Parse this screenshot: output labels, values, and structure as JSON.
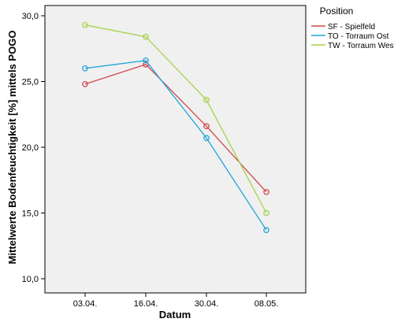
{
  "chart_data": {
    "type": "line",
    "categories": [
      "03.04.",
      "16.04.",
      "30.04.",
      "08.05."
    ],
    "xlabel": "Datum",
    "ylabel": "Mittelwerte Bodenfeuchtigkeit [%] mittels POGO",
    "ylim": [
      10,
      30
    ],
    "yticks": [
      "10,0",
      "15,0",
      "20,0",
      "25,0",
      "30,0"
    ],
    "grid": false,
    "legend_title": "Position",
    "legend_position": "top-right",
    "series": [
      {
        "name": "SF - Spielfeld",
        "color": "#d0484f",
        "values": [
          24.8,
          26.3,
          21.6,
          16.6
        ]
      },
      {
        "name": "TO - Torraum Ost",
        "color": "#1fa6d6",
        "values": [
          26.0,
          26.6,
          20.7,
          13.7
        ]
      },
      {
        "name": "TW - Torraum West",
        "color": "#a5d44a",
        "values": [
          29.3,
          28.4,
          23.6,
          15.0
        ]
      }
    ],
    "marker": "open-circle"
  },
  "colors": {
    "plot_background": "#f0f0f0",
    "axis": "#000000"
  }
}
